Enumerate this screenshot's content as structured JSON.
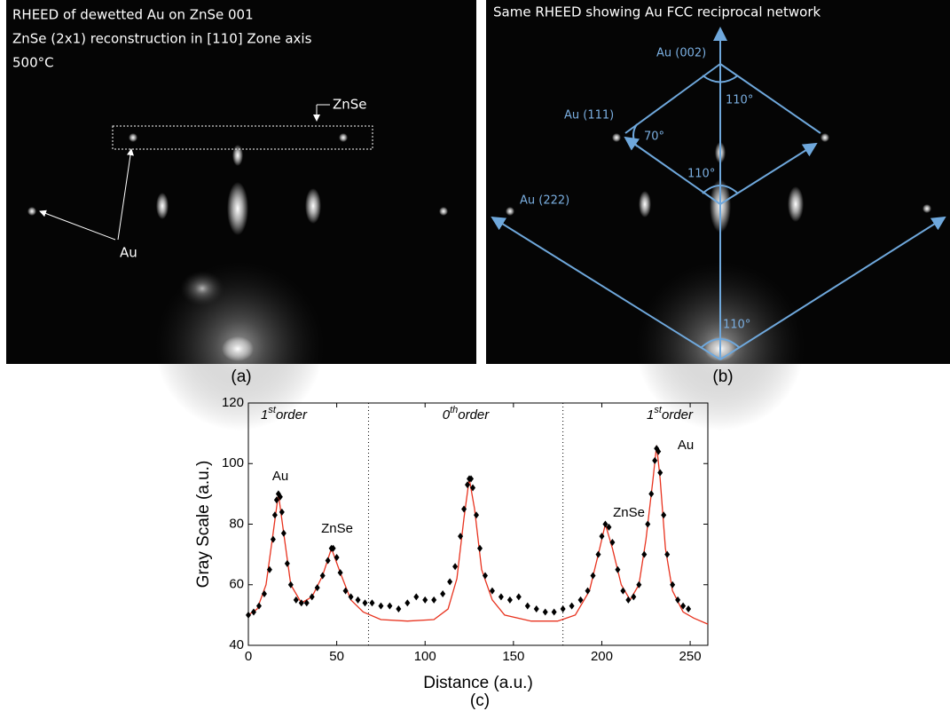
{
  "panel_a": {
    "lines": [
      "RHEED of dewetted Au on ZnSe 001",
      "ZnSe (2x1) reconstruction in [110] Zone axis",
      "500°C"
    ],
    "labels": [
      "ZnSe",
      "Au"
    ],
    "caption": "(a)"
  },
  "panel_b": {
    "title": "Same RHEED showing Au FCC reciprocal network",
    "labels": [
      "Au (002)",
      "Au (111)",
      "Au (222)"
    ],
    "angles": [
      "110°",
      "70°",
      "110°",
      "110°"
    ],
    "caption": "(b)"
  },
  "chart_data": {
    "type": "line",
    "caption": "(c)",
    "xlabel": "Distance (a.u.)",
    "ylabel": "Gray Scale (a.u.)",
    "xlim": [
      0,
      260
    ],
    "ylim": [
      40,
      120
    ],
    "xticks": [
      0,
      50,
      100,
      150,
      200,
      250
    ],
    "yticks": [
      40,
      60,
      80,
      100,
      120
    ],
    "dividers": [
      68,
      178
    ],
    "regions": [
      {
        "base": "1",
        "sup": "st",
        "text": "order"
      },
      {
        "base": "0",
        "sup": "th",
        "text": "order"
      },
      {
        "base": "1",
        "sup": "st",
        "text": "order"
      }
    ],
    "peak_labels": [
      "Au",
      "ZnSe",
      "ZnSe",
      "Au"
    ],
    "series": [
      {
        "color": "#000000",
        "marker": "diamond",
        "x": [
          0,
          3,
          6,
          9,
          12,
          14,
          15,
          16,
          17,
          18,
          19,
          20,
          22,
          24,
          27,
          30,
          33,
          36,
          39,
          42,
          45,
          47,
          48,
          50,
          52,
          55,
          58,
          62,
          66,
          70,
          75,
          80,
          85,
          90,
          95,
          100,
          105,
          110,
          114,
          117,
          120,
          122,
          124,
          125,
          126,
          127,
          129,
          131,
          134,
          138,
          143,
          148,
          153,
          158,
          163,
          168,
          173,
          178,
          183,
          188,
          192,
          195,
          198,
          200,
          202,
          204,
          206,
          209,
          212,
          215,
          218,
          221,
          224,
          226,
          228,
          230,
          231,
          232,
          233,
          235,
          237,
          240,
          243,
          246,
          249
        ],
        "values": [
          50,
          51,
          53,
          57,
          65,
          75,
          83,
          88,
          90,
          89,
          84,
          77,
          67,
          60,
          55,
          54,
          54,
          56,
          59,
          63,
          68,
          72,
          72,
          69,
          64,
          58,
          56,
          55,
          54,
          54,
          53,
          53,
          52,
          54,
          56,
          55,
          55,
          57,
          61,
          66,
          76,
          85,
          93,
          95,
          95,
          92,
          83,
          72,
          63,
          58,
          56,
          55,
          56,
          53,
          52,
          51,
          51,
          52,
          53,
          55,
          58,
          63,
          70,
          76,
          80,
          79,
          74,
          65,
          58,
          55,
          56,
          60,
          70,
          80,
          90,
          101,
          105,
          104,
          97,
          83,
          70,
          60,
          55,
          53,
          52
        ]
      },
      {
        "color": "#e8321e",
        "marker": "none",
        "x": [
          0,
          5,
          10,
          14,
          17,
          20,
          24,
          30,
          36,
          42,
          47,
          52,
          58,
          65,
          75,
          90,
          105,
          113,
          118,
          122,
          125,
          128,
          132,
          138,
          145,
          160,
          175,
          185,
          193,
          198,
          202,
          206,
          211,
          216,
          221,
          225,
          229,
          231,
          233,
          236,
          240,
          246,
          252,
          260
        ],
        "values": [
          50,
          52,
          60,
          77,
          90,
          77,
          60,
          54,
          56,
          63,
          72,
          64,
          55,
          51,
          48.5,
          48,
          48.5,
          52,
          62,
          82,
          95,
          85,
          65,
          55,
          50,
          48,
          48,
          50,
          58,
          70,
          80,
          72,
          60,
          55,
          60,
          75,
          95,
          106,
          95,
          72,
          58,
          51,
          49,
          47
        ]
      }
    ]
  }
}
